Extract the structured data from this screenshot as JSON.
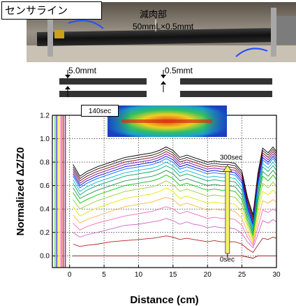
{
  "photo": {
    "sensor_label": "センサライン",
    "thinning_label": "減肉部",
    "dimension_label": "50mmL×0.5mmt"
  },
  "schematic": {
    "plate_thickness_label": "5.0mmt",
    "thinned_thickness_label": "0.5mmt"
  },
  "inset": {
    "time_label": "140sec"
  },
  "colors": {
    "axes": "#000000",
    "grid": "#000000",
    "heatmap_low": "#1a3fbf",
    "heatmap_high": "#e8401a"
  },
  "chart_data": {
    "type": "line",
    "xlabel": "Distance (cm)",
    "ylabel": "Normalized ΔZ/Z0",
    "xlim": [
      -2.5,
      30
    ],
    "ylim": [
      -0.1,
      1.2
    ],
    "xticks": [
      0,
      5,
      10,
      15,
      20,
      25,
      30
    ],
    "yticks": [
      0.0,
      0.2,
      0.4,
      0.6,
      0.8,
      1.0,
      1.2
    ],
    "grid": true,
    "annotations": [
      {
        "text": "300sec",
        "x": 23.0,
        "y": 0.82
      },
      {
        "text": "0sec",
        "x": 23.0,
        "y": -0.05
      }
    ],
    "x": [
      0.5,
      1.5,
      2.5,
      4,
      6,
      8,
      10,
      12,
      13,
      14,
      15,
      16,
      17,
      18,
      19,
      20,
      21,
      22,
      23,
      24,
      25,
      25.8,
      26.6,
      27.3,
      28,
      28.8,
      29.5,
      30
    ],
    "series": [
      {
        "color": "#000000",
        "values": [
          0.78,
          0.68,
          0.72,
          0.76,
          0.8,
          0.84,
          0.86,
          0.88,
          0.9,
          0.93,
          0.9,
          0.84,
          0.86,
          0.84,
          0.82,
          0.8,
          0.81,
          0.8,
          0.8,
          0.79,
          0.72,
          0.5,
          0.35,
          0.7,
          0.92,
          0.88,
          0.93,
          0.89
        ]
      },
      {
        "color": "#1c1c1c",
        "values": [
          0.76,
          0.66,
          0.7,
          0.74,
          0.78,
          0.82,
          0.84,
          0.86,
          0.88,
          0.91,
          0.88,
          0.82,
          0.84,
          0.82,
          0.8,
          0.78,
          0.79,
          0.78,
          0.78,
          0.77,
          0.7,
          0.48,
          0.33,
          0.68,
          0.9,
          0.86,
          0.91,
          0.87
        ]
      },
      {
        "color": "#800000",
        "values": [
          0.74,
          0.64,
          0.68,
          0.72,
          0.76,
          0.8,
          0.82,
          0.84,
          0.86,
          0.89,
          0.86,
          0.8,
          0.82,
          0.8,
          0.78,
          0.76,
          0.77,
          0.76,
          0.76,
          0.75,
          0.68,
          0.46,
          0.31,
          0.66,
          0.88,
          0.84,
          0.89,
          0.85
        ]
      },
      {
        "color": "#6a0dad",
        "values": [
          0.72,
          0.62,
          0.66,
          0.7,
          0.74,
          0.78,
          0.8,
          0.82,
          0.84,
          0.87,
          0.84,
          0.78,
          0.8,
          0.78,
          0.76,
          0.74,
          0.75,
          0.74,
          0.74,
          0.73,
          0.66,
          0.44,
          0.29,
          0.64,
          0.86,
          0.82,
          0.87,
          0.83
        ]
      },
      {
        "color": "#0000cc",
        "values": [
          0.7,
          0.6,
          0.64,
          0.68,
          0.72,
          0.76,
          0.78,
          0.8,
          0.82,
          0.85,
          0.82,
          0.76,
          0.78,
          0.76,
          0.74,
          0.72,
          0.73,
          0.72,
          0.72,
          0.71,
          0.64,
          0.42,
          0.27,
          0.62,
          0.84,
          0.8,
          0.85,
          0.81
        ]
      },
      {
        "color": "#0066ff",
        "values": [
          0.68,
          0.58,
          0.62,
          0.66,
          0.7,
          0.74,
          0.76,
          0.78,
          0.8,
          0.83,
          0.8,
          0.74,
          0.76,
          0.74,
          0.72,
          0.7,
          0.71,
          0.7,
          0.7,
          0.69,
          0.62,
          0.4,
          0.25,
          0.6,
          0.82,
          0.78,
          0.83,
          0.79
        ]
      },
      {
        "color": "#00bcd4",
        "values": [
          0.65,
          0.55,
          0.59,
          0.63,
          0.67,
          0.71,
          0.73,
          0.75,
          0.77,
          0.8,
          0.77,
          0.71,
          0.73,
          0.71,
          0.69,
          0.67,
          0.68,
          0.67,
          0.67,
          0.66,
          0.59,
          0.38,
          0.23,
          0.57,
          0.79,
          0.75,
          0.8,
          0.76
        ]
      },
      {
        "color": "#00a86b",
        "values": [
          0.62,
          0.52,
          0.56,
          0.6,
          0.64,
          0.68,
          0.7,
          0.72,
          0.74,
          0.77,
          0.74,
          0.68,
          0.7,
          0.68,
          0.66,
          0.64,
          0.65,
          0.64,
          0.64,
          0.63,
          0.56,
          0.36,
          0.21,
          0.54,
          0.76,
          0.72,
          0.77,
          0.73
        ]
      },
      {
        "color": "#2e8b57",
        "values": [
          0.58,
          0.49,
          0.52,
          0.56,
          0.6,
          0.64,
          0.66,
          0.68,
          0.7,
          0.73,
          0.7,
          0.64,
          0.66,
          0.64,
          0.62,
          0.6,
          0.61,
          0.6,
          0.6,
          0.59,
          0.52,
          0.33,
          0.19,
          0.5,
          0.72,
          0.68,
          0.73,
          0.69
        ]
      },
      {
        "color": "#00cc00",
        "values": [
          0.54,
          0.45,
          0.48,
          0.52,
          0.56,
          0.6,
          0.62,
          0.64,
          0.66,
          0.69,
          0.66,
          0.6,
          0.62,
          0.6,
          0.58,
          0.56,
          0.57,
          0.56,
          0.56,
          0.55,
          0.48,
          0.3,
          0.17,
          0.46,
          0.68,
          0.64,
          0.69,
          0.65
        ]
      },
      {
        "color": "#9acd32",
        "values": [
          0.48,
          0.4,
          0.43,
          0.47,
          0.51,
          0.55,
          0.57,
          0.59,
          0.61,
          0.64,
          0.61,
          0.55,
          0.57,
          0.55,
          0.53,
          0.51,
          0.52,
          0.51,
          0.51,
          0.5,
          0.43,
          0.27,
          0.15,
          0.41,
          0.62,
          0.58,
          0.63,
          0.59
        ]
      },
      {
        "color": "#e6e600",
        "values": [
          0.42,
          0.34,
          0.37,
          0.41,
          0.45,
          0.49,
          0.51,
          0.53,
          0.55,
          0.58,
          0.55,
          0.49,
          0.51,
          0.49,
          0.47,
          0.45,
          0.46,
          0.45,
          0.45,
          0.44,
          0.38,
          0.24,
          0.13,
          0.36,
          0.55,
          0.52,
          0.56,
          0.53
        ]
      },
      {
        "color": "#ffb347",
        "values": [
          0.35,
          0.28,
          0.31,
          0.34,
          0.38,
          0.42,
          0.44,
          0.46,
          0.48,
          0.5,
          0.48,
          0.43,
          0.45,
          0.43,
          0.41,
          0.39,
          0.4,
          0.39,
          0.39,
          0.38,
          0.32,
          0.2,
          0.11,
          0.3,
          0.47,
          0.45,
          0.48,
          0.46
        ]
      },
      {
        "color": "#ff69b4",
        "values": [
          0.28,
          0.22,
          0.25,
          0.28,
          0.31,
          0.34,
          0.36,
          0.38,
          0.4,
          0.42,
          0.4,
          0.36,
          0.38,
          0.36,
          0.34,
          0.32,
          0.33,
          0.32,
          0.32,
          0.31,
          0.26,
          0.16,
          0.09,
          0.24,
          0.39,
          0.37,
          0.4,
          0.38
        ]
      },
      {
        "color": "#cc66cc",
        "values": [
          0.2,
          0.16,
          0.18,
          0.2,
          0.23,
          0.26,
          0.27,
          0.29,
          0.3,
          0.32,
          0.3,
          0.27,
          0.29,
          0.27,
          0.26,
          0.24,
          0.25,
          0.24,
          0.24,
          0.23,
          0.19,
          0.12,
          0.07,
          0.18,
          0.3,
          0.28,
          0.31,
          0.29
        ]
      },
      {
        "color": "#b22222",
        "values": [
          0.1,
          0.08,
          0.09,
          0.1,
          0.12,
          0.13,
          0.14,
          0.15,
          0.16,
          0.17,
          0.16,
          0.14,
          0.15,
          0.14,
          0.13,
          0.12,
          0.13,
          0.12,
          0.12,
          0.12,
          0.1,
          0.06,
          0.03,
          0.09,
          0.15,
          0.14,
          0.16,
          0.15
        ]
      },
      {
        "color": "#8b0000",
        "values": [
          0.0,
          0.0,
          0.0,
          0.0,
          0.0,
          0.0,
          0.0,
          0.0,
          0.0,
          0.0,
          0.0,
          0.0,
          0.0,
          0.0,
          0.0,
          0.0,
          0.0,
          0.0,
          0.0,
          0.0,
          0.0,
          -0.01,
          -0.02,
          0.0,
          0.0,
          0.0,
          0.0,
          0.0
        ]
      }
    ]
  }
}
